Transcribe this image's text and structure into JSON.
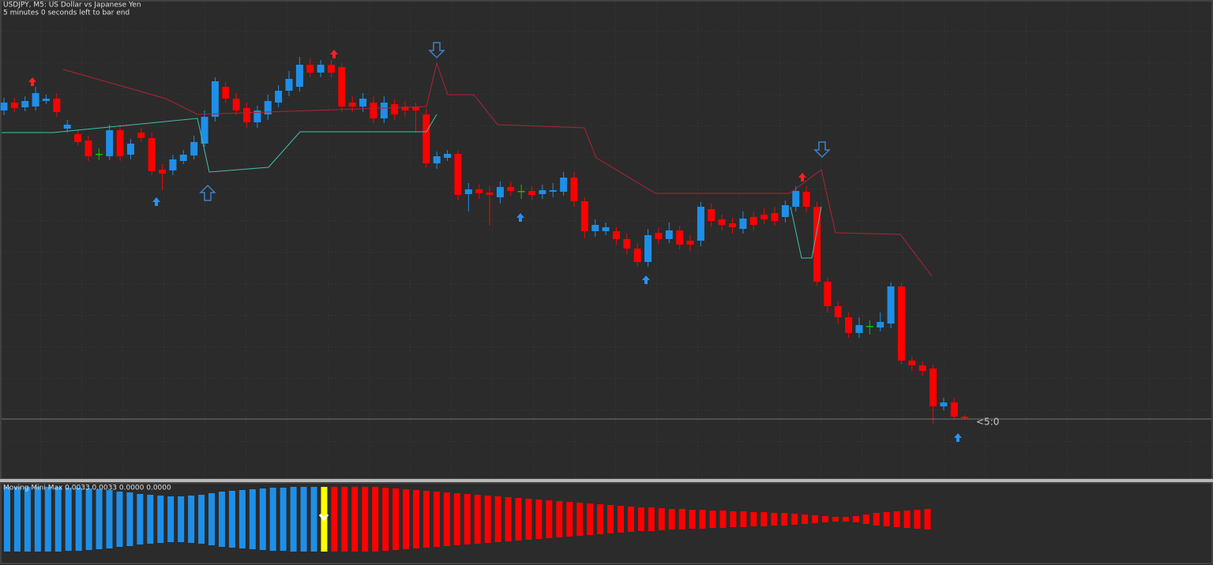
{
  "header": {
    "title": "USDJPY, M5:  US Dollar vs Japanese Yen",
    "subtitle": "5 minutes 0 seconds left to bar end"
  },
  "chart_data": [
    {
      "type": "candlestick",
      "price_label": "<5:0",
      "ylim": [
        0,
        608
      ],
      "colors": {
        "up": "#1e8fe8",
        "down": "#ff0000",
        "doji": "#00c800"
      },
      "candles": [
        [
          468,
          484,
          462,
          478
        ],
        [
          478,
          484,
          466,
          471
        ],
        [
          472,
          486,
          467,
          480
        ],
        [
          473,
          498,
          468,
          490
        ],
        [
          480,
          488,
          476,
          483
        ],
        [
          483,
          490,
          460,
          466
        ],
        [
          445,
          456,
          440,
          450
        ],
        [
          438,
          444,
          424,
          428
        ],
        [
          430,
          436,
          404,
          410
        ],
        [
          413,
          420,
          405,
          413
        ],
        [
          410,
          450,
          405,
          443
        ],
        [
          443,
          450,
          404,
          410
        ],
        [
          412,
          432,
          406,
          426
        ],
        [
          440,
          446,
          428,
          433
        ],
        [
          433,
          440,
          386,
          391
        ],
        [
          393,
          400,
          368,
          388
        ],
        [
          392,
          412,
          386,
          406
        ],
        [
          404,
          418,
          400,
          412
        ],
        [
          411,
          436,
          406,
          428
        ],
        [
          426,
          468,
          422,
          460
        ],
        [
          460,
          510,
          454,
          505
        ],
        [
          498,
          504,
          478,
          483
        ],
        [
          483,
          490,
          462,
          468
        ],
        [
          471,
          478,
          446,
          453
        ],
        [
          453,
          474,
          446,
          468
        ],
        [
          463,
          488,
          456,
          480
        ],
        [
          478,
          500,
          472,
          493
        ],
        [
          493,
          518,
          486,
          508
        ],
        [
          498,
          536,
          492,
          526
        ],
        [
          526,
          534,
          510,
          516
        ],
        [
          516,
          532,
          510,
          526
        ],
        [
          526,
          532,
          510,
          516
        ],
        [
          523,
          528,
          466,
          473
        ],
        [
          478,
          486,
          466,
          473
        ],
        [
          473,
          490,
          466,
          483
        ],
        [
          478,
          486,
          452,
          458
        ],
        [
          458,
          486,
          452,
          478
        ],
        [
          476,
          482,
          456,
          463
        ],
        [
          473,
          480,
          460,
          468
        ],
        [
          472,
          478,
          440,
          468
        ],
        [
          463,
          470,
          396,
          401
        ],
        [
          401,
          416,
          394,
          410
        ],
        [
          408,
          418,
          404,
          413
        ],
        [
          413,
          418,
          354,
          361
        ],
        [
          362,
          376,
          340,
          368
        ],
        [
          368,
          374,
          356,
          363
        ],
        [
          364,
          372,
          322,
          361
        ],
        [
          358,
          378,
          350,
          371
        ],
        [
          371,
          378,
          360,
          366
        ],
        [
          366,
          374,
          356,
          366
        ],
        [
          366,
          372,
          354,
          361
        ],
        [
          362,
          374,
          356,
          367
        ],
        [
          365,
          376,
          358,
          367
        ],
        [
          365,
          390,
          360,
          383
        ],
        [
          383,
          390,
          346,
          353
        ],
        [
          353,
          358,
          306,
          315
        ],
        [
          315,
          330,
          308,
          323
        ],
        [
          315,
          326,
          310,
          320
        ],
        [
          315,
          320,
          298,
          305
        ],
        [
          305,
          312,
          286,
          293
        ],
        [
          293,
          300,
          270,
          276
        ],
        [
          276,
          318,
          270,
          310
        ],
        [
          313,
          320,
          298,
          305
        ],
        [
          305,
          326,
          300,
          316
        ],
        [
          316,
          322,
          292,
          298
        ],
        [
          303,
          310,
          290,
          298
        ],
        [
          303,
          352,
          296,
          346
        ],
        [
          343,
          350,
          320,
          328
        ],
        [
          330,
          336,
          316,
          323
        ],
        [
          325,
          332,
          312,
          320
        ],
        [
          318,
          340,
          312,
          331
        ],
        [
          333,
          340,
          316,
          323
        ],
        [
          336,
          344,
          324,
          330
        ],
        [
          338,
          346,
          322,
          328
        ],
        [
          333,
          354,
          326,
          348
        ],
        [
          346,
          372,
          340,
          366
        ],
        [
          365,
          372,
          340,
          346
        ],
        [
          346,
          352,
          246,
          251
        ],
        [
          251,
          256,
          212,
          220
        ],
        [
          220,
          226,
          198,
          206
        ],
        [
          206,
          212,
          180,
          186
        ],
        [
          186,
          206,
          180,
          196
        ],
        [
          195,
          202,
          184,
          195
        ],
        [
          193,
          212,
          188,
          200
        ],
        [
          198,
          250,
          192,
          245
        ],
        [
          245,
          250,
          146,
          151
        ],
        [
          151,
          156,
          138,
          145
        ],
        [
          145,
          150,
          132,
          138
        ],
        [
          141,
          146,
          70,
          93
        ],
        [
          93,
          104,
          88,
          98
        ],
        [
          98,
          104,
          76,
          80
        ],
        [
          80,
          82,
          76,
          78
        ]
      ]
    },
    {
      "type": "histogram",
      "title": "Moving Mini Max 0.0033 0.0033 0.0000 0.0000",
      "ylim": [
        -42,
        42
      ],
      "colors": {
        "up": "#1e8fe8",
        "down": "#ff0000",
        "signal": "#ffff00"
      },
      "signal_index": 31,
      "values": [
        41,
        41,
        41,
        41,
        41,
        41,
        40,
        40,
        39,
        38,
        37,
        35,
        34,
        32,
        31,
        30,
        29,
        29,
        30,
        31,
        33,
        35,
        36,
        37,
        38,
        39,
        40,
        40,
        41,
        41,
        41,
        41,
        -41,
        -41,
        -41,
        -41,
        -41,
        -40,
        -39,
        -38,
        -37,
        -36,
        -35,
        -34,
        -33,
        -32,
        -31,
        -30,
        -29,
        -28,
        -27,
        -26,
        -25,
        -24,
        -23,
        -22,
        -21,
        -20,
        -19,
        -18,
        -17,
        -16,
        -15,
        -15,
        -14,
        -13,
        -13,
        -12,
        -12,
        -11,
        -11,
        -10,
        -10,
        -9,
        -9,
        -8,
        -8,
        -7,
        -6,
        -5,
        -4,
        -3,
        -3,
        -4,
        -6,
        -8,
        -9,
        -10,
        -11,
        -12,
        -13
      ]
    }
  ]
}
